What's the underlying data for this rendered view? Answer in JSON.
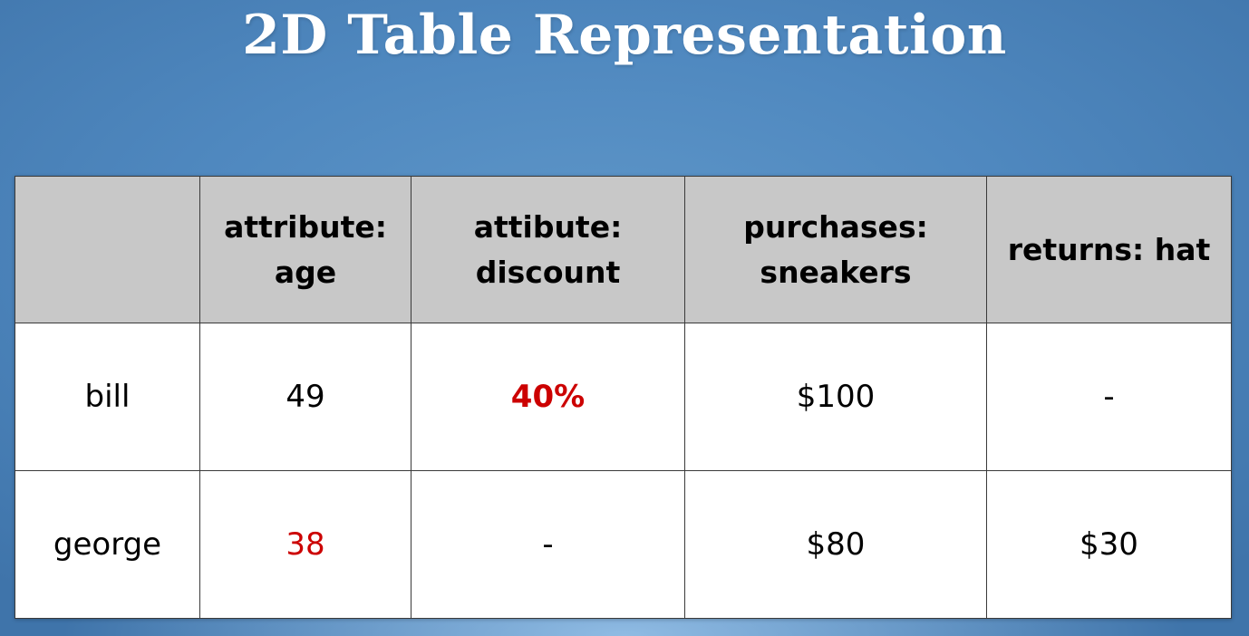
{
  "slide": {
    "title": "2D Table Representation"
  },
  "table": {
    "headers": [
      "",
      "attribute:\nage",
      "attibute:\ndiscount",
      "purchases:\nsneakers",
      "returns: hat"
    ],
    "rows": [
      {
        "cells": [
          "bill",
          "49",
          "40%",
          "$100",
          "-"
        ]
      },
      {
        "cells": [
          "george",
          "38",
          "-",
          "$80",
          "$30"
        ]
      }
    ]
  },
  "colors": {
    "background": "#4f88bf",
    "header_fill": "#c8c8c8",
    "highlight": "#cc0000"
  }
}
